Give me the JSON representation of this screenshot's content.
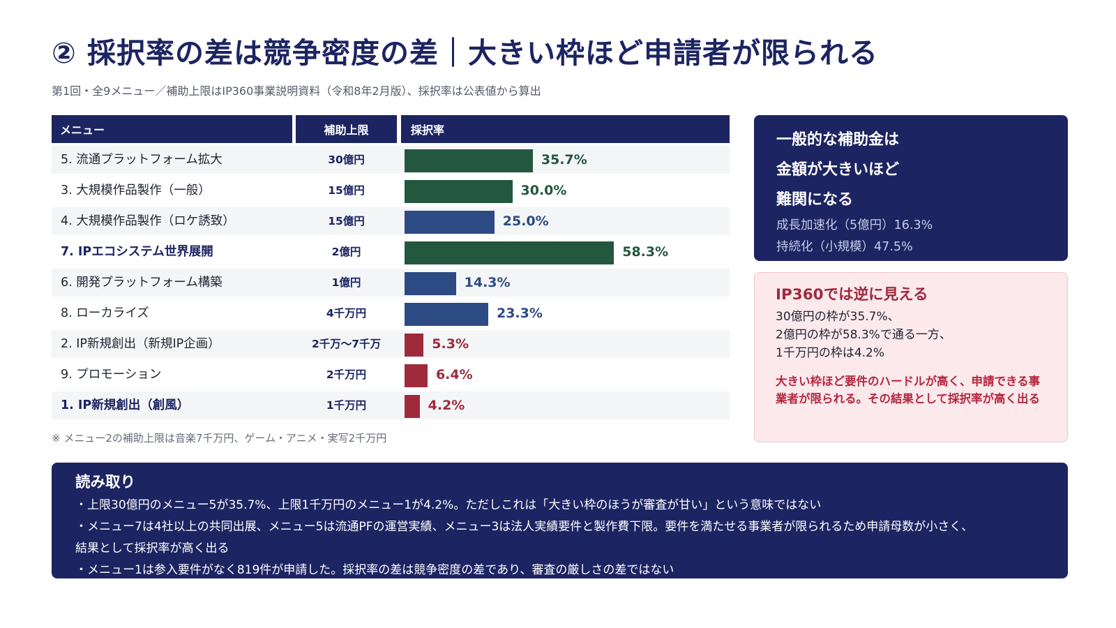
{
  "title": "② 採択率の差は競争密度の差｜大きい枠ほど申請者が限られる",
  "subtitle": "第1回・全9メニュー／補助上限はIP360事業説明資料（令和8年2月版）、採択率は公表値から算出",
  "table": {
    "col_menu": "メニュー",
    "col_limit": "補助上限",
    "col_rate": "採択率"
  },
  "chart_data": {
    "type": "bar",
    "orientation": "horizontal",
    "unit": "%",
    "rows": [
      {
        "menu": "5. 流通プラットフォーム拡大",
        "limit": "30億円",
        "value": 35.7,
        "label": "35.7%",
        "color": "#23573e",
        "bold": false
      },
      {
        "menu": "3. 大規模作品製作（一般）",
        "limit": "15億円",
        "value": 30.0,
        "label": "30.0%",
        "color": "#23573e",
        "bold": false
      },
      {
        "menu": "4. 大規模作品製作（ロケ誘致）",
        "limit": "15億円",
        "value": 25.0,
        "label": "25.0%",
        "color": "#2c4a84",
        "bold": false
      },
      {
        "menu": "7. IPエコシステム世界展開",
        "limit": "2億円",
        "value": 58.3,
        "label": "58.3%",
        "color": "#23573e",
        "bold": true
      },
      {
        "menu": "6. 開発プラットフォーム構築",
        "limit": "1億円",
        "value": 14.3,
        "label": "14.3%",
        "color": "#2c4a84",
        "bold": false
      },
      {
        "menu": "8. ローカライズ",
        "limit": "4千万円",
        "value": 23.3,
        "label": "23.3%",
        "color": "#2c4a84",
        "bold": false
      },
      {
        "menu": "2. IP新規創出（新規IP企画）",
        "limit": "2千万〜7千万",
        "value": 5.3,
        "label": "5.3%",
        "color": "#9e2a3c",
        "bold": false
      },
      {
        "menu": "9. プロモーション",
        "limit": "2千万円",
        "value": 6.4,
        "label": "6.4%",
        "color": "#9e2a3c",
        "bold": false
      },
      {
        "menu": "1. IP新規創出（創風）",
        "limit": "1千万円",
        "value": 4.2,
        "label": "4.2%",
        "color": "#9e2a3c",
        "bold": true
      }
    ]
  },
  "footnote": "※ メニュー2の補助上限は音楽7千万円、ゲーム・アニメ・実写2千万円",
  "general_card": {
    "lines": [
      "一般的な補助金は",
      "金額が大きいほど",
      "難関になる"
    ],
    "stats": [
      "成長加速化（5億円）16.3%",
      "持続化（小規模）47.5%"
    ]
  },
  "ip360_card": {
    "heading": "IP360では逆に見える",
    "lines": [
      "30億円の枠が35.7%、",
      "2億円の枠が58.3%で通る一方、",
      "1千万円の枠は4.2%"
    ],
    "emphasis": "大きい枠ほど要件のハードルが高く、申請できる事業者が限られる。その結果として採択率が高く出る"
  },
  "reading": {
    "heading": "読み取り",
    "lines": [
      "・上限30億円のメニュー5が35.7%、上限1千万円のメニュー1が4.2%。ただしこれは「大きい枠のほうが審査が甘い」という意味ではない",
      "・メニュー7は4社以上の共同出展、メニュー5は流通PFの運営実績、メニュー3は法人実績要件と製作費下限。要件を満たせる事業者が限られるため申請母数が小さく、",
      "結果として採択率が高く出る",
      "・メニュー1は参入要件がなく819件が申請した。採択率の差は競争密度の差であり、審査の厳しさの差ではない"
    ]
  },
  "colors": {
    "navy": "#1c2462",
    "green": "#23573e",
    "blue": "#2c4a84",
    "red": "#9e2a3c",
    "pink_bg": "#fbe9ec"
  }
}
